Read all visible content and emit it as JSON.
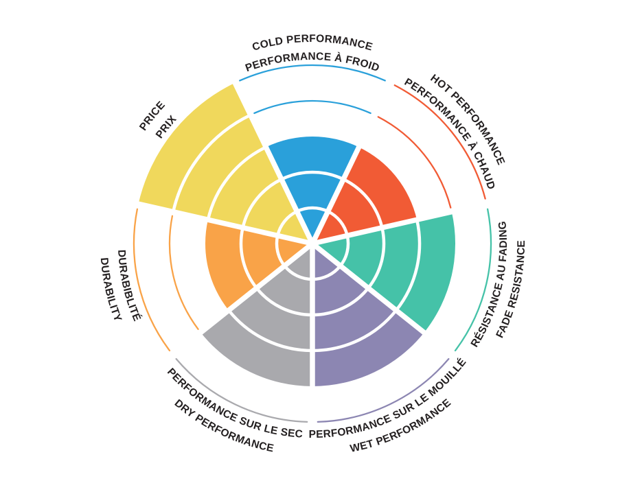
{
  "chart_data": {
    "type": "radial-sector-rating",
    "title": "",
    "max_level": 5,
    "grid": "concentric-rings-5",
    "legend_position": "labels-around-circle",
    "text_color": "#231F20",
    "background_color": "#FFFFFF",
    "sectors": [
      {
        "id": "cold",
        "label_en": "COLD PERFORMANCE",
        "label_fr": "PERFORMANCE À FROID",
        "value": 3,
        "color": "#2AA0DA"
      },
      {
        "id": "hot",
        "label_en": "HOT PERFORMANCE",
        "label_fr": "PERFORMANCE À CHAUD",
        "value": 3,
        "color": "#F15B35"
      },
      {
        "id": "fade",
        "label_en": "FADE RESISTANCE",
        "label_fr": "RÉSISTANCE AU FADING",
        "value": 4,
        "color": "#45C2A8"
      },
      {
        "id": "wet",
        "label_en": "WET PERFORMANCE",
        "label_fr": "PERFORMANCE SUR LE MOUILLÉ",
        "value": 4,
        "color": "#8C86B2"
      },
      {
        "id": "dry",
        "label_en": "DRY PERFORMANCE",
        "label_fr": "PERFORMANCE SUR LE SEC",
        "value": 4,
        "color": "#A9A9AD"
      },
      {
        "id": "durability",
        "label_en": "DURABILITY",
        "label_fr": "DURABIBLITÉ",
        "value": 3,
        "color": "#F9A348"
      },
      {
        "id": "price",
        "label_en": "PRICE",
        "label_fr": "PRIX",
        "value": 5,
        "color": "#F0D85C"
      }
    ]
  }
}
